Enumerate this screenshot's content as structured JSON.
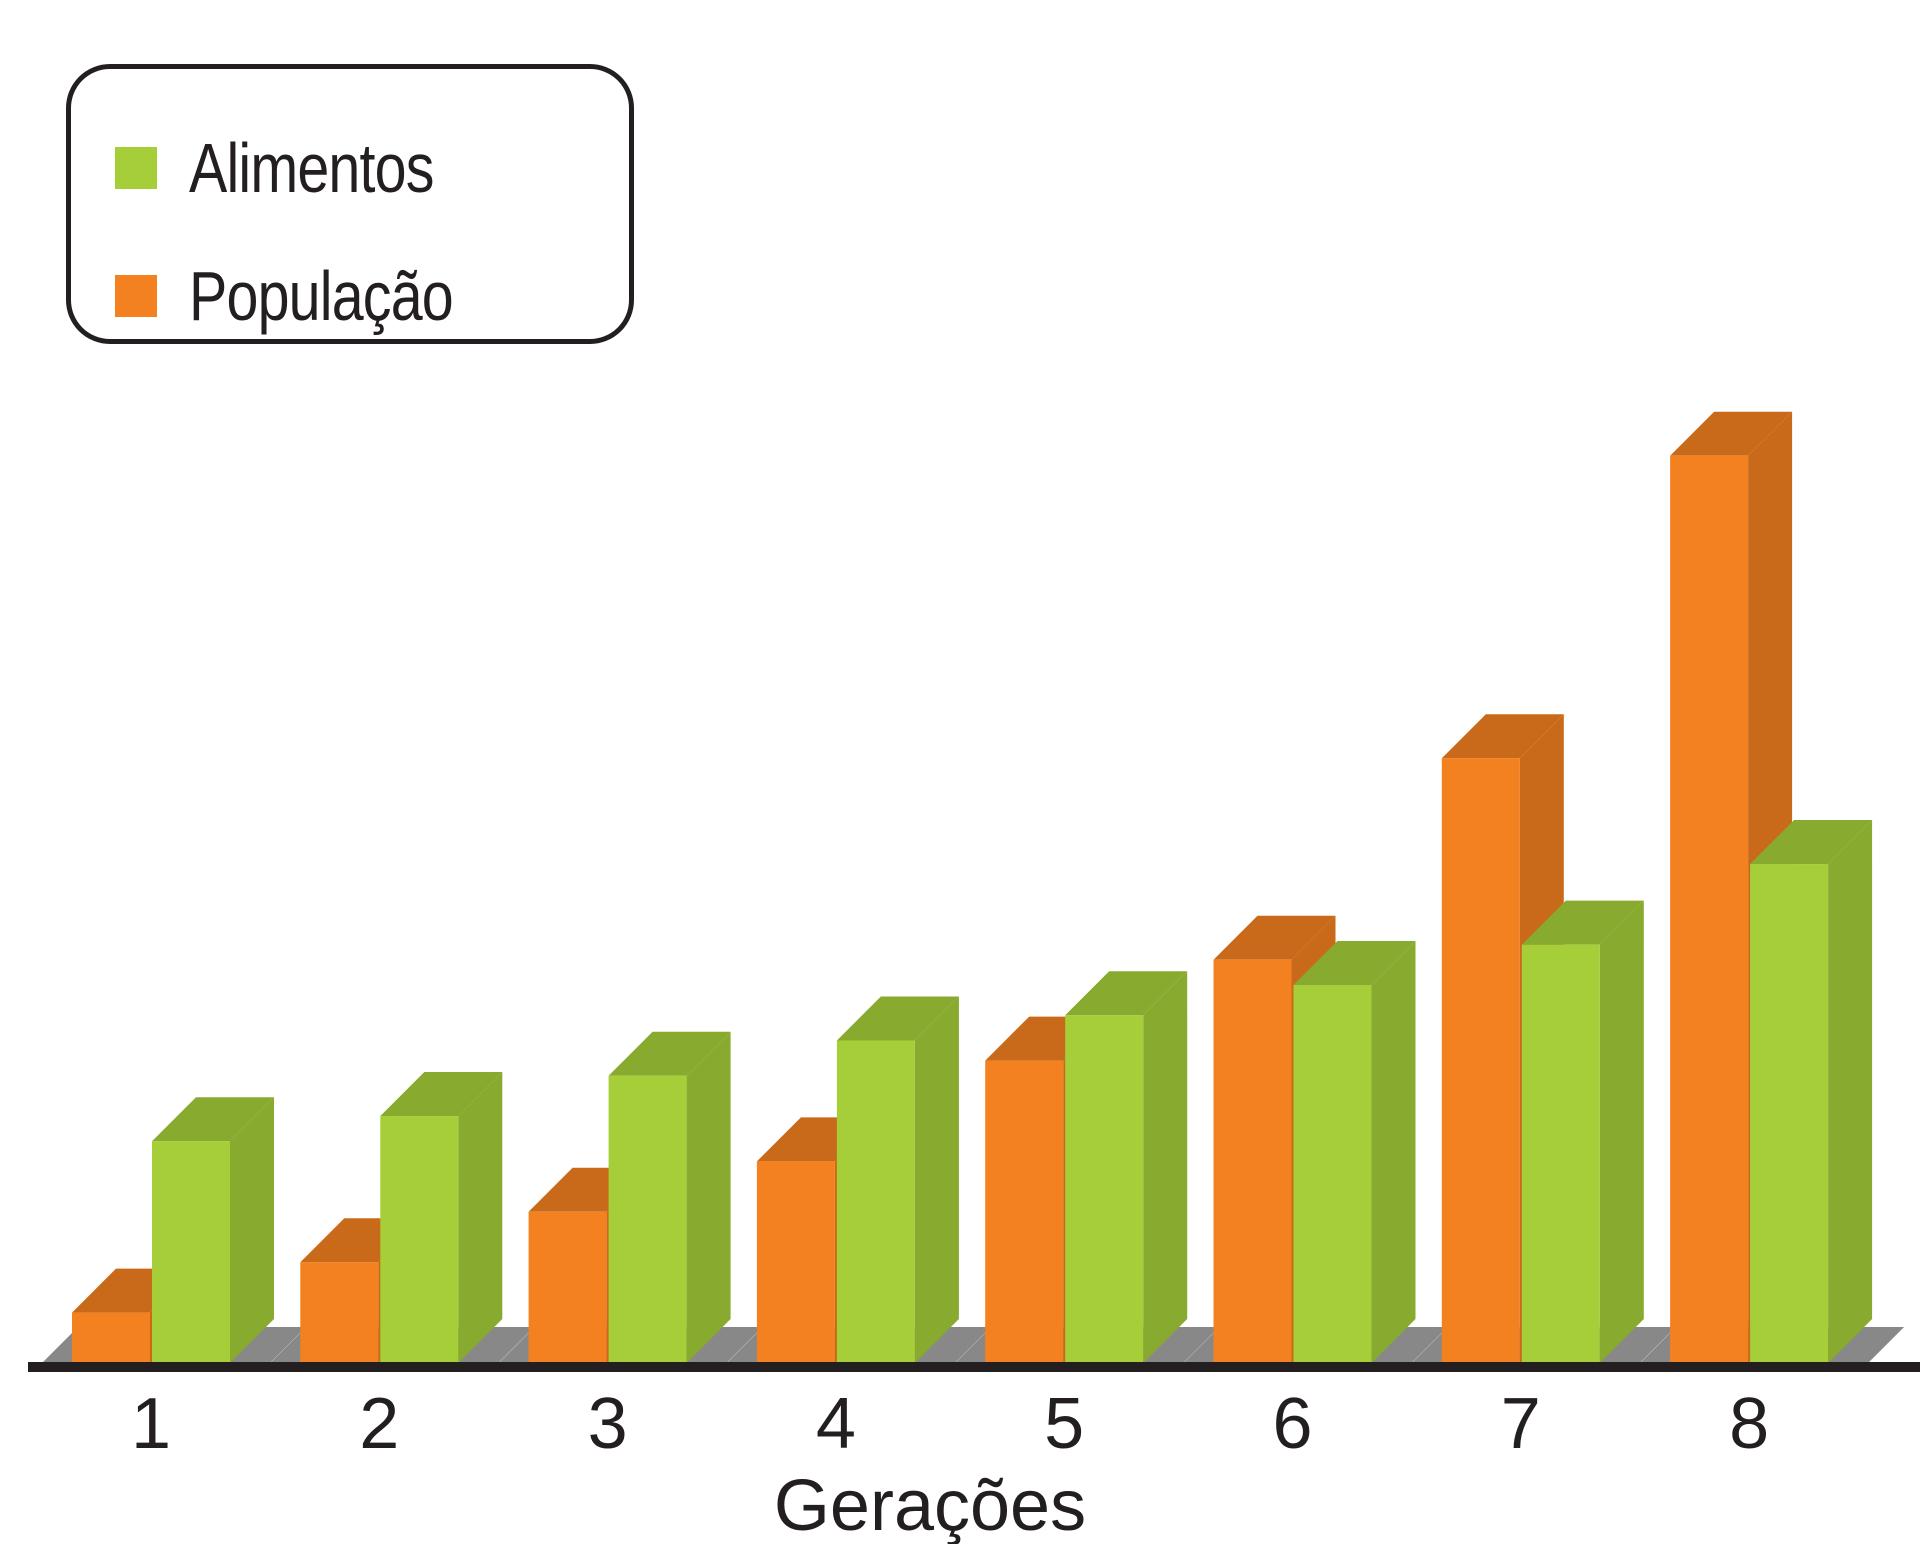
{
  "chart_data": {
    "type": "bar",
    "title": "",
    "xlabel": "Gerações",
    "ylabel": "",
    "categories": [
      "1",
      "2",
      "3",
      "4",
      "5",
      "6",
      "7",
      "8"
    ],
    "series": [
      {
        "name": "População",
        "color": "#f48120",
        "values": [
          1,
          2,
          3,
          4,
          6,
          8,
          12,
          18
        ]
      },
      {
        "name": "Alimentos",
        "color": "#a6ce39",
        "values": [
          4.4,
          4.9,
          5.7,
          6.4,
          6.9,
          7.5,
          8.3,
          9.9
        ]
      }
    ],
    "ylim": [
      0,
      20
    ],
    "grid": false,
    "legend_position": "top-left",
    "style": "3d"
  },
  "legend": {
    "items": [
      {
        "label": "Alimentos",
        "color": "#a6ce39"
      },
      {
        "label": "População",
        "color": "#f48120"
      }
    ]
  }
}
